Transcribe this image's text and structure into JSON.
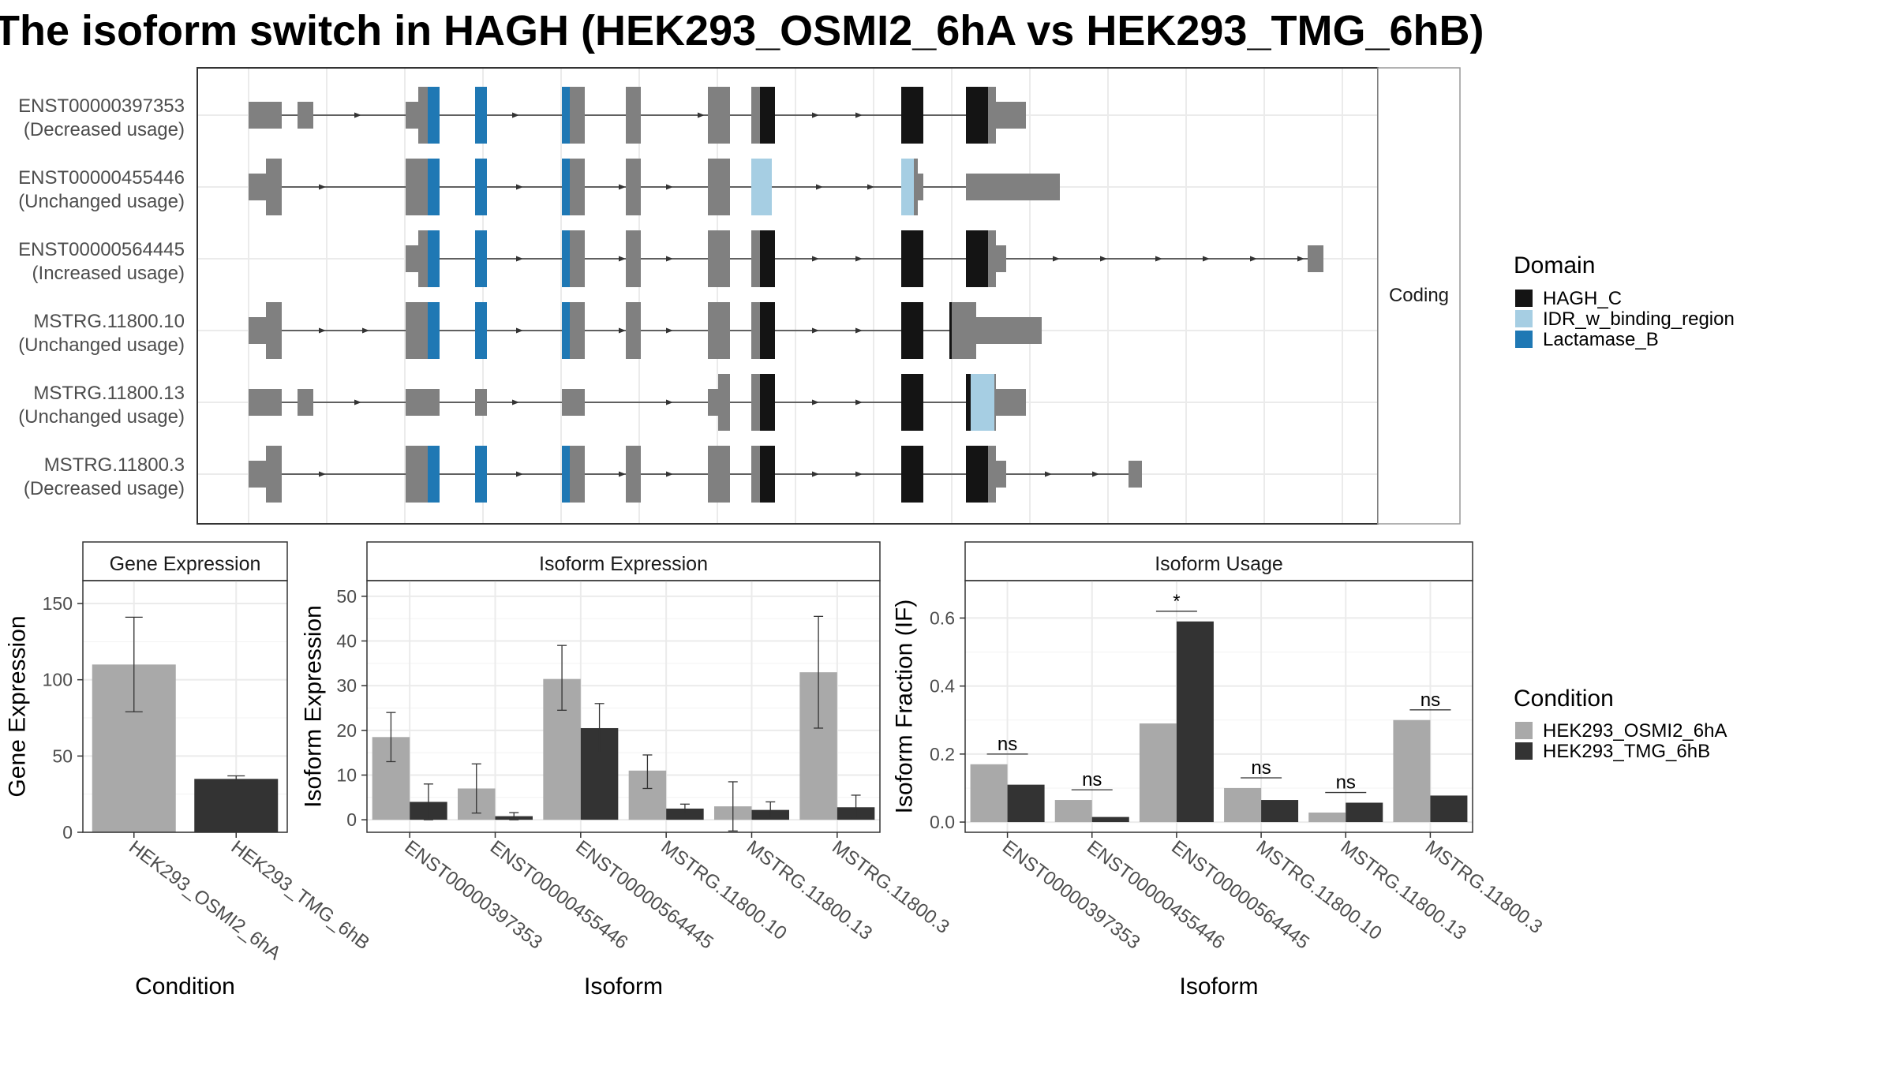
{
  "title": "The isoform switch in HAGH (HEK293_OSMI2_6hA vs HEK293_TMG_6hB)",
  "colors": {
    "HAGH_C": "#141414",
    "IDR_w_binding_region": "#a6cee3",
    "Lactamase_B": "#1f78b4",
    "exon": "#808080",
    "cond_a": "#a9a9a9",
    "cond_b": "#333333"
  },
  "structure": {
    "facet_label": "Coding",
    "isoforms": [
      {
        "id": "ENST00000397353",
        "status": "(Decreased usage)"
      },
      {
        "id": "ENST00000455446",
        "status": "(Unchanged usage)"
      },
      {
        "id": "ENST00000564445",
        "status": "(Increased usage)"
      },
      {
        "id": "MSTRG.11800.10",
        "status": "(Unchanged usage)"
      },
      {
        "id": "MSTRG.11800.13",
        "status": "(Unchanged usage)"
      },
      {
        "id": "MSTRG.11800.3",
        "status": "(Decreased usage)"
      }
    ]
  },
  "legend_domain": {
    "title": "Domain",
    "items": [
      {
        "key": "HAGH_C",
        "label": "HAGH_C"
      },
      {
        "key": "IDR_w_binding_region",
        "label": "IDR_w_binding_region"
      },
      {
        "key": "Lactamase_B",
        "label": "Lactamase_B"
      }
    ]
  },
  "legend_condition": {
    "title": "Condition",
    "items": [
      {
        "key": "cond_a",
        "label": "HEK293_OSMI2_6hA"
      },
      {
        "key": "cond_b",
        "label": "HEK293_TMG_6hB"
      }
    ]
  },
  "chart_data": [
    {
      "type": "bar",
      "panel": "Gene Expression",
      "xlabel": "Condition",
      "ylabel": "Gene Expression",
      "categories": [
        "HEK293_OSMI2_6hA",
        "HEK293_TMG_6hB"
      ],
      "values": [
        110,
        35
      ],
      "errors": [
        [
          79,
          141
        ],
        [
          34,
          37
        ]
      ],
      "ylim": [
        0,
        165
      ],
      "yticks": [
        0,
        50,
        100,
        150
      ]
    },
    {
      "type": "bar",
      "panel": "Isoform Expression",
      "xlabel": "Isoform",
      "ylabel": "Isoform Expression",
      "categories": [
        "ENST00000397353",
        "ENST00000455446",
        "ENST00000564445",
        "MSTRG.11800.10",
        "MSTRG.11800.13",
        "MSTRG.11800.3"
      ],
      "series": [
        {
          "name": "HEK293_OSMI2_6hA",
          "values": [
            18.5,
            7,
            31.5,
            11,
            3,
            33
          ],
          "errors": [
            [
              13,
              24
            ],
            [
              1.5,
              12.5
            ],
            [
              24.5,
              39
            ],
            [
              7,
              14.5
            ],
            [
              -2.5,
              8.5
            ],
            [
              20.5,
              45.5
            ]
          ]
        },
        {
          "name": "HEK293_TMG_6hB",
          "values": [
            4,
            0.8,
            20.5,
            2.5,
            2.2,
            2.8
          ],
          "errors": [
            [
              0,
              8
            ],
            [
              0,
              1.6
            ],
            [
              15,
              26
            ],
            [
              1.5,
              3.5
            ],
            [
              0.5,
              4
            ],
            [
              0.5,
              5.5
            ]
          ]
        }
      ],
      "ylim": [
        -2.8,
        53.5
      ],
      "yticks": [
        0,
        10,
        20,
        30,
        40,
        50
      ]
    },
    {
      "type": "bar",
      "panel": "Isoform Usage",
      "xlabel": "Isoform",
      "ylabel": "Isoform Fraction (IF)",
      "categories": [
        "ENST00000397353",
        "ENST00000455446",
        "ENST00000564445",
        "MSTRG.11800.10",
        "MSTRG.11800.13",
        "MSTRG.11800.3"
      ],
      "series": [
        {
          "name": "HEK293_OSMI2_6hA",
          "values": [
            0.17,
            0.065,
            0.29,
            0.1,
            0.028,
            0.3
          ]
        },
        {
          "name": "HEK293_TMG_6hB",
          "values": [
            0.11,
            0.015,
            0.59,
            0.065,
            0.057,
            0.078
          ]
        }
      ],
      "significance": [
        "ns",
        "ns",
        "*",
        "ns",
        "ns",
        "ns"
      ],
      "sig_y": [
        0.2,
        0.095,
        0.62,
        0.13,
        0.087,
        0.33
      ],
      "ylim": [
        -0.03,
        0.71
      ],
      "yticks": [
        0.0,
        0.2,
        0.4,
        0.6
      ]
    }
  ]
}
